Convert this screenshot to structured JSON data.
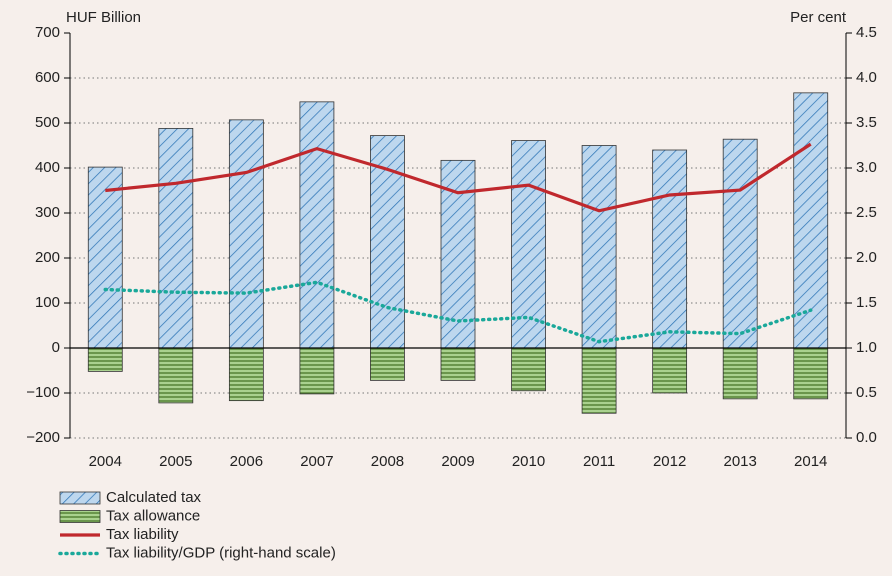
{
  "chart_data": {
    "type": "bar",
    "y_label": "HUF Billion",
    "y2_label": "Per cent",
    "categories": [
      "2004",
      "2005",
      "2006",
      "2007",
      "2008",
      "2009",
      "2010",
      "2011",
      "2012",
      "2013",
      "2014"
    ],
    "series": [
      {
        "name": "Calculated tax",
        "type": "bar",
        "pattern": "diagonal",
        "color": "#bdd7ee",
        "values": [
          402,
          488,
          507,
          547,
          472,
          417,
          461,
          450,
          440,
          464,
          567
        ]
      },
      {
        "name": "Tax allowance",
        "type": "bar",
        "pattern": "horizontal",
        "color": "#a9d18e",
        "values": [
          -52,
          -122,
          -117,
          -102,
          -72,
          -72,
          -95,
          -145,
          -100,
          -113,
          -113
        ]
      },
      {
        "name": "Tax liability",
        "type": "line",
        "dash": false,
        "color": "#c0282d",
        "values": [
          350,
          366,
          390,
          443,
          397,
          345,
          362,
          305,
          340,
          351,
          453
        ]
      },
      {
        "name": "Tax liability/GDP (right-hand scale)",
        "type": "line",
        "dash": true,
        "axis": "y2",
        "color": "#1aa89a",
        "values": [
          1.65,
          1.62,
          1.61,
          1.73,
          1.45,
          1.3,
          1.34,
          1.07,
          1.18,
          1.16,
          1.42
        ]
      }
    ],
    "ylim": [
      -200,
      700
    ],
    "yticks": [
      {
        "value": -200,
        "label": "−200"
      },
      {
        "value": -100,
        "label": "−100"
      },
      0,
      100,
      200,
      300,
      400,
      500,
      600,
      700
    ],
    "y2lim": [
      0,
      4.5
    ],
    "y2ticks": [
      {
        "value": 0,
        "label": "0.0"
      },
      0.5,
      {
        "value": 1,
        "label": "1.0"
      },
      1.5,
      {
        "value": 2,
        "label": "2.0"
      },
      2.5,
      {
        "value": 3,
        "label": "3.0"
      },
      3.5,
      {
        "value": 4,
        "label": "4.0"
      },
      4.5
    ],
    "grid": true,
    "legend": "bottom-left"
  }
}
